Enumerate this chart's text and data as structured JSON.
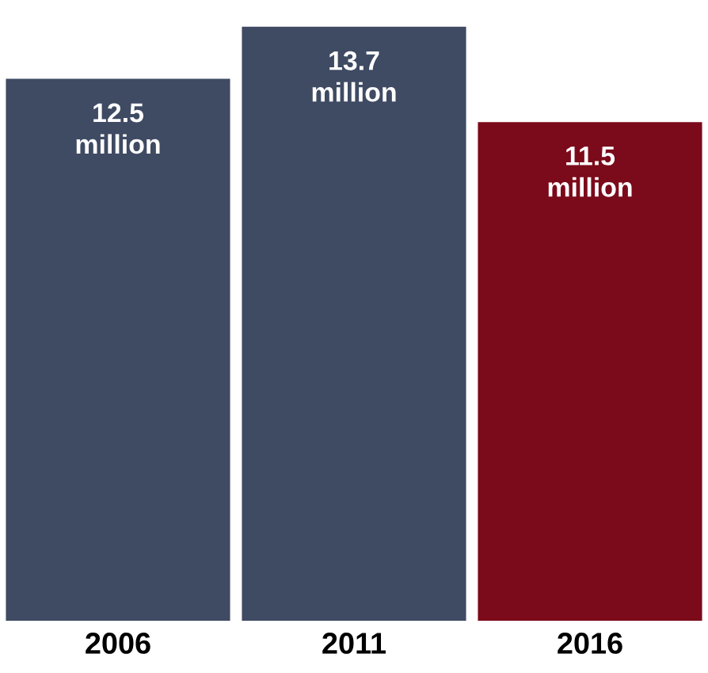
{
  "chart_data": {
    "type": "bar",
    "categories": [
      "2006",
      "2011",
      "2016"
    ],
    "values": [
      12.5,
      13.7,
      11.5
    ],
    "colors": [
      "#3f4a63",
      "#3f4a63",
      "#7b0a1a"
    ],
    "value_labels": [
      "12.5 million",
      "13.7 million",
      "11.5 million"
    ]
  }
}
